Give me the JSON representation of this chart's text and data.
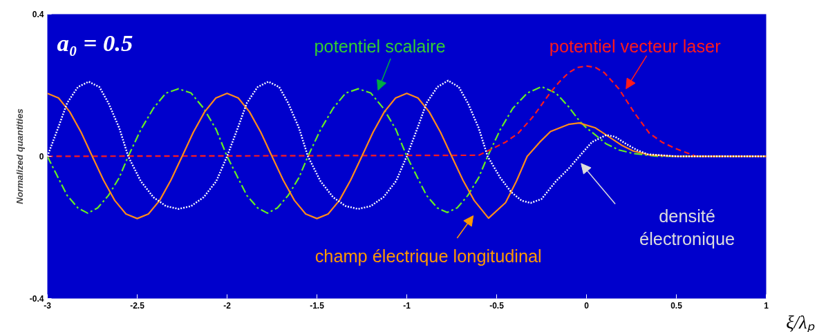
{
  "chart_data": {
    "type": "line",
    "xlabel": "ξ/λₚ",
    "ylabel": "Normalized quantities",
    "xlim": [
      -3,
      1
    ],
    "ylim": [
      -0.4,
      0.4
    ],
    "xticks": [
      -3,
      -2.5,
      -2,
      -1.5,
      -1,
      -0.5,
      0,
      0.5,
      1
    ],
    "yticks": [
      -0.4,
      0,
      0.4
    ],
    "grid": false,
    "legend": false,
    "annotations": [
      "a₀ = 0.5"
    ],
    "series": [
      {
        "name": "potentiel scalaire",
        "color": "#66ee22",
        "line_style": "dashdot",
        "x": [
          -3,
          -2.94,
          -2.89,
          -2.83,
          -2.775,
          -2.72,
          -2.66,
          -2.6,
          -2.55,
          -2.48,
          -2.41,
          -2.34,
          -2.27,
          -2.2,
          -2.13,
          -2.06,
          -2,
          -1.94,
          -1.89,
          -1.83,
          -1.775,
          -1.72,
          -1.66,
          -1.6,
          -1.55,
          -1.48,
          -1.41,
          -1.34,
          -1.27,
          -1.2,
          -1.13,
          -1.06,
          -1,
          -0.94,
          -0.89,
          -0.83,
          -0.775,
          -0.72,
          -0.66,
          -0.6,
          -0.55,
          -0.48,
          -0.41,
          -0.33,
          -0.25,
          -0.17,
          -0.1,
          -0.04,
          0,
          0.05,
          0.11,
          0.18,
          0.26,
          0.4,
          1
        ],
        "values": [
          0,
          -0.06,
          -0.11,
          -0.145,
          -0.16,
          -0.145,
          -0.11,
          -0.06,
          0,
          0.075,
          0.135,
          0.178,
          0.19,
          0.178,
          0.135,
          0.075,
          0,
          -0.06,
          -0.11,
          -0.145,
          -0.16,
          -0.145,
          -0.11,
          -0.06,
          0,
          0.075,
          0.135,
          0.178,
          0.19,
          0.178,
          0.135,
          0.075,
          0,
          -0.06,
          -0.11,
          -0.145,
          -0.158,
          -0.145,
          -0.11,
          -0.06,
          0,
          0.075,
          0.135,
          0.178,
          0.196,
          0.178,
          0.14,
          0.1,
          0.08,
          0.06,
          0.035,
          0.018,
          0.008,
          0,
          0
        ]
      },
      {
        "name": "potentiel vecteur laser",
        "color": "#ff1a1a",
        "line_style": "dashed",
        "x": [
          -3,
          -0.6,
          -0.53,
          -0.45,
          -0.38,
          -0.3,
          -0.25,
          -0.2,
          -0.15,
          -0.1,
          -0.05,
          0,
          0.05,
          0.1,
          0.18,
          0.27,
          0.35,
          0.42,
          0.49,
          0.61,
          1
        ],
        "values": [
          0,
          0.003,
          0.02,
          0.04,
          0.065,
          0.11,
          0.145,
          0.18,
          0.21,
          0.235,
          0.25,
          0.254,
          0.25,
          0.235,
          0.19,
          0.12,
          0.065,
          0.04,
          0.023,
          0,
          0
        ]
      },
      {
        "name": "champ électrique longitudinal",
        "color": "#ff8c1a",
        "line_style": "solid",
        "x": [
          -3,
          -2.9375,
          -2.875,
          -2.8125,
          -2.75,
          -2.6875,
          -2.625,
          -2.5625,
          -2.5,
          -2.4375,
          -2.375,
          -2.3125,
          -2.25,
          -2.1875,
          -2.125,
          -2.0625,
          -2,
          -1.9375,
          -1.875,
          -1.8125,
          -1.75,
          -1.6875,
          -1.625,
          -1.5625,
          -1.5,
          -1.4375,
          -1.375,
          -1.3125,
          -1.25,
          -1.1875,
          -1.125,
          -1.0625,
          -1,
          -0.9375,
          -0.875,
          -0.8125,
          -0.75,
          -0.6875,
          -0.625,
          -0.545,
          -0.45,
          -0.39,
          -0.33,
          -0.26,
          -0.2,
          -0.1,
          -0.04,
          0.05,
          0.11,
          0.2,
          0.26,
          0.35,
          0.5,
          1
        ],
        "values": [
          0.177,
          0.164,
          0.125,
          0.068,
          0,
          -0.067,
          -0.124,
          -0.162,
          -0.175,
          -0.162,
          -0.124,
          -0.067,
          0,
          0.068,
          0.125,
          0.164,
          0.177,
          0.164,
          0.125,
          0.068,
          0,
          -0.067,
          -0.124,
          -0.162,
          -0.175,
          -0.162,
          -0.124,
          -0.067,
          0,
          0.068,
          0.125,
          0.164,
          0.177,
          0.164,
          0.125,
          0.068,
          0,
          -0.067,
          -0.124,
          -0.174,
          -0.13,
          -0.07,
          0,
          0.04,
          0.07,
          0.09,
          0.094,
          0.08,
          0.06,
          0.03,
          0.015,
          0.004,
          0,
          0
        ]
      },
      {
        "name": "densité\nélectronique",
        "color": "#ffffff",
        "line_style": "dotted",
        "x": [
          -3,
          -2.94,
          -2.89,
          -2.83,
          -2.77,
          -2.71,
          -2.66,
          -2.6,
          -2.55,
          -2.48,
          -2.41,
          -2.34,
          -2.27,
          -2.2,
          -2.13,
          -2.06,
          -2,
          -1.94,
          -1.89,
          -1.83,
          -1.77,
          -1.71,
          -1.66,
          -1.6,
          -1.55,
          -1.48,
          -1.41,
          -1.34,
          -1.27,
          -1.2,
          -1.13,
          -1.06,
          -1,
          -0.94,
          -0.89,
          -0.83,
          -0.77,
          -0.71,
          -0.66,
          -0.6,
          -0.55,
          -0.48,
          -0.42,
          -0.36,
          -0.31,
          -0.25,
          -0.17,
          -0.1,
          -0.04,
          0.03,
          0.11,
          0.16,
          0.22,
          0.28,
          0.34,
          0.5,
          1
        ],
        "values": [
          0,
          0.08,
          0.15,
          0.195,
          0.21,
          0.195,
          0.15,
          0.08,
          0,
          -0.07,
          -0.115,
          -0.14,
          -0.148,
          -0.14,
          -0.115,
          -0.07,
          0,
          0.08,
          0.15,
          0.195,
          0.21,
          0.195,
          0.15,
          0.08,
          0,
          -0.07,
          -0.115,
          -0.14,
          -0.148,
          -0.14,
          -0.115,
          -0.07,
          0,
          0.08,
          0.15,
          0.195,
          0.213,
          0.195,
          0.15,
          0.08,
          0,
          -0.06,
          -0.1,
          -0.125,
          -0.131,
          -0.12,
          -0.07,
          -0.035,
          0,
          0.04,
          0.06,
          0.055,
          0.035,
          0.018,
          0.006,
          0,
          0
        ]
      }
    ]
  }
}
